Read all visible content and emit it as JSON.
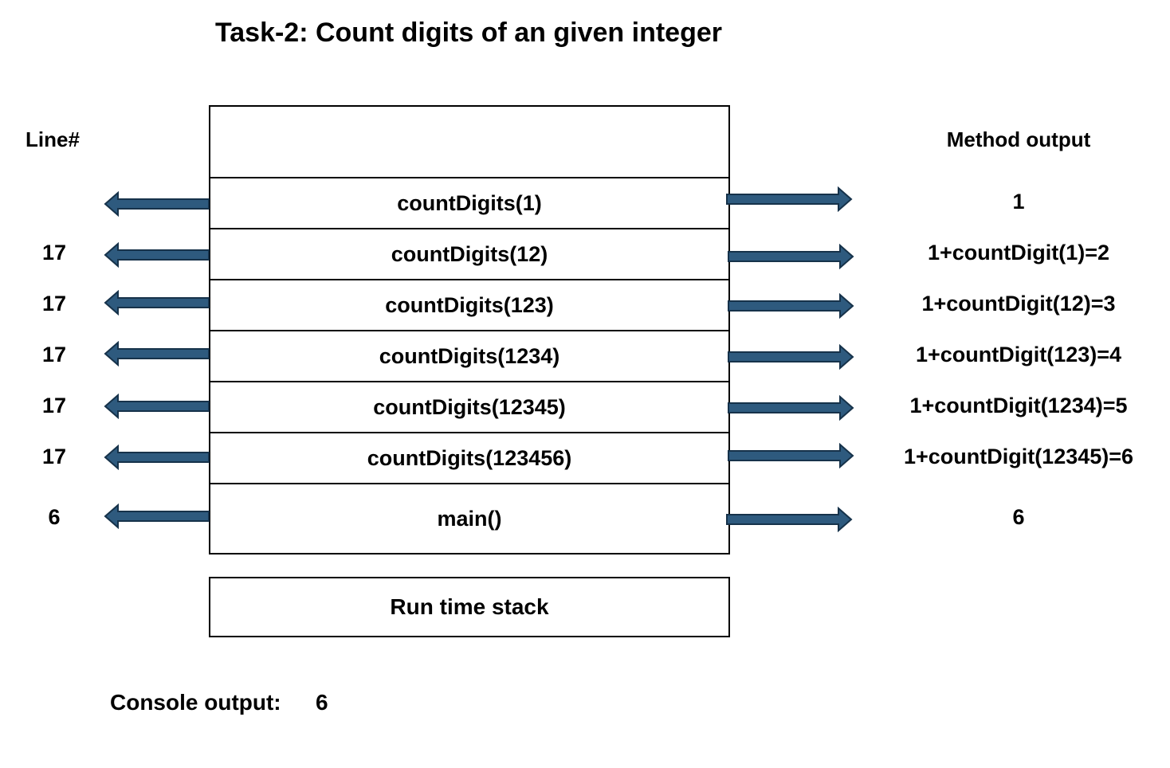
{
  "title": "Task-2: Count digits of an given integer",
  "headers": {
    "line": "Line#",
    "method_output": "Method output"
  },
  "frames": [
    {
      "call": "countDigits(1)",
      "line": "",
      "output": "1"
    },
    {
      "call": "countDigits(12)",
      "line": "17",
      "output": "1+countDigit(1)=2"
    },
    {
      "call": "countDigits(123)",
      "line": "17",
      "output": "1+countDigit(12)=3"
    },
    {
      "call": "countDigits(1234)",
      "line": "17",
      "output": "1+countDigit(123)=4"
    },
    {
      "call": "countDigits(12345)",
      "line": "17",
      "output": "1+countDigit(1234)=5"
    },
    {
      "call": "countDigits(123456)",
      "line": "17",
      "output": "1+countDigit(12345)=6"
    },
    {
      "call": "main()",
      "line": "6",
      "output": "6"
    }
  ],
  "stack_label": "Run time stack",
  "console": {
    "label": "Console output:",
    "value": "6"
  },
  "colors": {
    "arrow_fill": "#2e5a7e",
    "arrow_stroke": "#16324a"
  }
}
